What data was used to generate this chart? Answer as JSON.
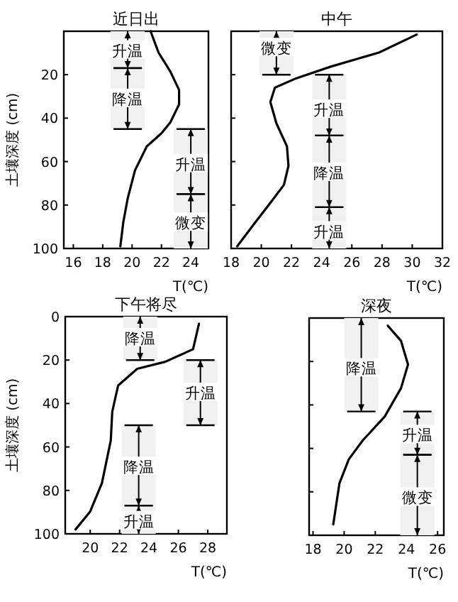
{
  "chart_data": [
    {
      "type": "line",
      "title": "近日出",
      "xlabel": "T(℃)",
      "ylabel": "土壤深度 (cm)",
      "color": "#000000",
      "x": [
        21.26,
        21.8,
        22.6,
        23.2,
        23.2,
        22.6,
        22.0,
        21.0,
        20.2,
        19.7,
        19.4,
        19.2
      ],
      "values": [
        0,
        9.8,
        18.5,
        27,
        33.7,
        42,
        47,
        53,
        64,
        77,
        88,
        99
      ],
      "xlim": [
        15.35,
        25.2
      ],
      "ylim": [
        100,
        0
      ],
      "xticks": [
        16,
        18,
        20,
        22,
        24
      ],
      "yticks": [
        {
          "value": 0,
          "label": null
        },
        20,
        40,
        60,
        80,
        100
      ],
      "annotations": [
        {
          "text": "升温",
          "x": 19.7,
          "y": 8.7
        },
        {
          "text": "降温",
          "x": 19.7,
          "y": 31
        },
        {
          "text": "升温",
          "x": 24.0,
          "y": 61
        },
        {
          "text": "微变",
          "x": 24.0,
          "y": 88
        }
      ],
      "bands": [
        {
          "axis": "y",
          "from": 0,
          "to": 17,
          "color": "#f0f0f0"
        },
        {
          "axis": "y",
          "from": 17,
          "to": 45,
          "color": "#f0f0f0"
        },
        {
          "axis": "y",
          "from": 45,
          "to": 75,
          "color": "#f0f0f0"
        },
        {
          "axis": "y",
          "from": 75,
          "to": 100,
          "color": "#f0f0f0"
        }
      ]
    },
    {
      "type": "line",
      "title": "中午",
      "xlabel": "T(℃)",
      "color": "#000000",
      "x": [
        30.3,
        27.8,
        24.6,
        22.3,
        20.9,
        20.6,
        21.0,
        21.7,
        21.8,
        21.5,
        20.6,
        19.6,
        18.4
      ],
      "values": [
        1.5,
        9.8,
        16.3,
        21.7,
        26,
        32.6,
        42.4,
        53,
        62,
        70.7,
        79,
        88,
        99
      ],
      "xlim": [
        18,
        32
      ],
      "ylim": [
        100,
        0
      ],
      "xticks": [
        18,
        20,
        22,
        24,
        26,
        28,
        30,
        32
      ],
      "yticks": [
        0,
        20,
        40,
        60,
        80,
        100
      ],
      "tick_labels": "x",
      "annotations": [
        {
          "text": "微变",
          "x": 21.0,
          "y": 7.6
        },
        {
          "text": "升温",
          "x": 24.5,
          "y": 36
        },
        {
          "text": "降温",
          "x": 24.5,
          "y": 65
        },
        {
          "text": "升温",
          "x": 24.5,
          "y": 92
        }
      ],
      "bands": [
        {
          "axis": "y",
          "from": 0,
          "to": 20,
          "color": "#f0f0f0"
        },
        {
          "axis": "y",
          "from": 20,
          "to": 48,
          "color": "#f0f0f0"
        },
        {
          "axis": "y",
          "from": 48,
          "to": 81,
          "color": "#f0f0f0"
        },
        {
          "axis": "y",
          "from": 81,
          "to": 100,
          "color": "#f0f0f0"
        }
      ]
    },
    {
      "type": "line",
      "title": "下午将尽",
      "xlabel": "T(℃)",
      "ylabel": "土壤深度 (cm)",
      "color": "#000000",
      "x": [
        27.4,
        27.0,
        25.1,
        23.2,
        21.9,
        21.5,
        21.4,
        20.8,
        20.0,
        19.0
      ],
      "values": [
        3.3,
        15,
        20.8,
        24,
        31.7,
        43.8,
        57,
        76.6,
        89.7,
        98
      ],
      "xlim": [
        18.3,
        29.3
      ],
      "ylim": [
        100,
        0
      ],
      "xticks": [
        20,
        22,
        24,
        26,
        28
      ],
      "yticks": [
        0,
        20,
        40,
        60,
        80,
        100
      ],
      "annotations": [
        {
          "text": "降温",
          "x": 23.4,
          "y": 9.8
        },
        {
          "text": "升温",
          "x": 27.5,
          "y": 35
        },
        {
          "text": "降温",
          "x": 23.3,
          "y": 69
        },
        {
          "text": "升温",
          "x": 23.3,
          "y": 94
        }
      ],
      "bands": [
        {
          "axis": "y",
          "from": 0,
          "to": 20,
          "color": "#f0f0f0"
        },
        {
          "axis": "y",
          "from": 20,
          "to": 50,
          "color": "#f0f0f0"
        },
        {
          "axis": "y",
          "from": 50,
          "to": 87,
          "color": "#f0f0f0"
        },
        {
          "axis": "y",
          "from": 87,
          "to": 100,
          "color": "#f0f0f0"
        }
      ]
    },
    {
      "type": "line",
      "title": "深夜",
      "xlabel": "T(℃)",
      "color": "#000000",
      "x": [
        22.8,
        23.65,
        24.1,
        23.65,
        22.6,
        21.2,
        20.3,
        19.7,
        19.3
      ],
      "values": [
        3.5,
        10.5,
        21.4,
        32.3,
        45.4,
        56.3,
        65,
        76,
        95
      ],
      "xlim": [
        17.75,
        26.4
      ],
      "ylim": [
        100,
        0
      ],
      "xticks": [
        18,
        20,
        22,
        24,
        26
      ],
      "yticks": [
        0,
        20,
        40,
        60,
        80,
        100
      ],
      "tick_labels": "x",
      "annotations": [
        {
          "text": "降温",
          "x": 21.1,
          "y": 23
        },
        {
          "text": "升温",
          "x": 24.7,
          "y": 53.7
        },
        {
          "text": "微变",
          "x": 24.7,
          "y": 82.5
        }
      ],
      "bands": [
        {
          "axis": "y",
          "from": 0,
          "to": 43,
          "color": "#f0f0f0"
        },
        {
          "axis": "y",
          "from": 43,
          "to": 63,
          "color": "#f0f0f0"
        },
        {
          "axis": "y",
          "from": 63,
          "to": 100,
          "color": "#f0f0f0"
        }
      ]
    }
  ]
}
